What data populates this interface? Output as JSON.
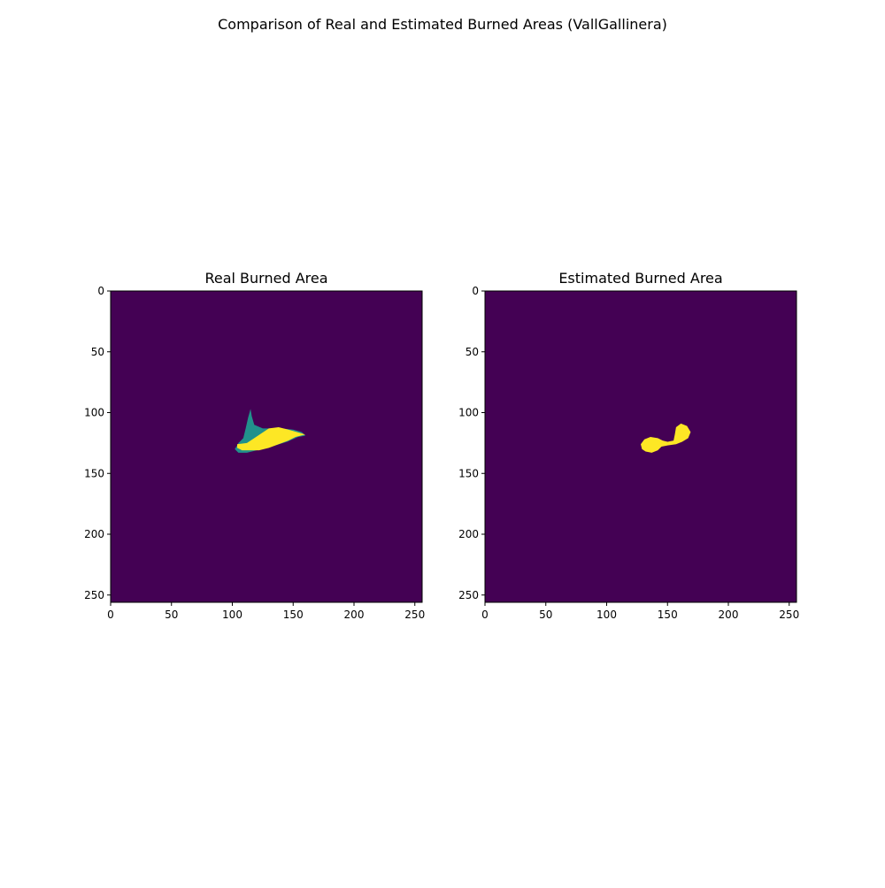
{
  "figure": {
    "title": "Comparison of Real and Estimated Burned Areas (VallGallinera)"
  },
  "colors": {
    "background_class": "#440154",
    "mid_class": "#21918c",
    "high_class": "#fde725"
  },
  "chart_data": [
    {
      "type": "heatmap",
      "title": "Real Burned Area",
      "xlabel": "",
      "ylabel": "",
      "xlim": [
        0,
        256
      ],
      "ylim": [
        256,
        0
      ],
      "xticks": [
        0,
        50,
        100,
        150,
        200,
        250
      ],
      "yticks": [
        0,
        50,
        100,
        150,
        200,
        250
      ],
      "grid": false,
      "regions": [
        {
          "class": "mid",
          "polygon": [
            [
              105,
              125
            ],
            [
              109,
              121
            ],
            [
              111,
              113
            ],
            [
              113,
              104
            ],
            [
              115,
              97
            ],
            [
              116,
              103
            ],
            [
              118,
              110
            ],
            [
              125,
              113
            ],
            [
              140,
              113
            ],
            [
              150,
              114
            ],
            [
              157,
              116
            ],
            [
              160,
              119
            ],
            [
              154,
              120
            ],
            [
              145,
              124
            ],
            [
              132,
              128
            ],
            [
              120,
              131
            ],
            [
              112,
              133
            ],
            [
              105,
              133
            ],
            [
              102,
              130
            ],
            [
              104,
              127
            ]
          ]
        },
        {
          "class": "high",
          "polygon": [
            [
              104,
              126
            ],
            [
              112,
              125
            ],
            [
              118,
              121
            ],
            [
              124,
              117
            ],
            [
              130,
              113
            ],
            [
              138,
              112
            ],
            [
              146,
              114
            ],
            [
              153,
              116
            ],
            [
              160,
              118
            ],
            [
              152,
              120
            ],
            [
              146,
              123
            ],
            [
              138,
              126
            ],
            [
              130,
              129
            ],
            [
              122,
              131
            ],
            [
              115,
              131
            ],
            [
              108,
              131
            ],
            [
              104,
              129
            ]
          ]
        }
      ]
    },
    {
      "type": "heatmap",
      "title": "Estimated Burned Area",
      "xlabel": "",
      "ylabel": "",
      "xlim": [
        0,
        256
      ],
      "ylim": [
        256,
        0
      ],
      "xticks": [
        0,
        50,
        100,
        150,
        200,
        250
      ],
      "yticks": [
        0,
        50,
        100,
        150,
        200,
        250
      ],
      "grid": false,
      "regions": [
        {
          "class": "high",
          "polygon": [
            [
              128,
              126
            ],
            [
              131,
              122
            ],
            [
              136,
              120
            ],
            [
              142,
              121
            ],
            [
              146,
              123
            ],
            [
              150,
              124
            ],
            [
              155,
              123
            ],
            [
              156,
              118
            ],
            [
              157,
              112
            ],
            [
              161,
              109
            ],
            [
              166,
              111
            ],
            [
              169,
              116
            ],
            [
              167,
              121
            ],
            [
              162,
              124
            ],
            [
              157,
              126
            ],
            [
              150,
              127
            ],
            [
              145,
              128
            ],
            [
              142,
              131
            ],
            [
              137,
              133
            ],
            [
              132,
              132
            ],
            [
              129,
              130
            ]
          ]
        }
      ]
    }
  ]
}
